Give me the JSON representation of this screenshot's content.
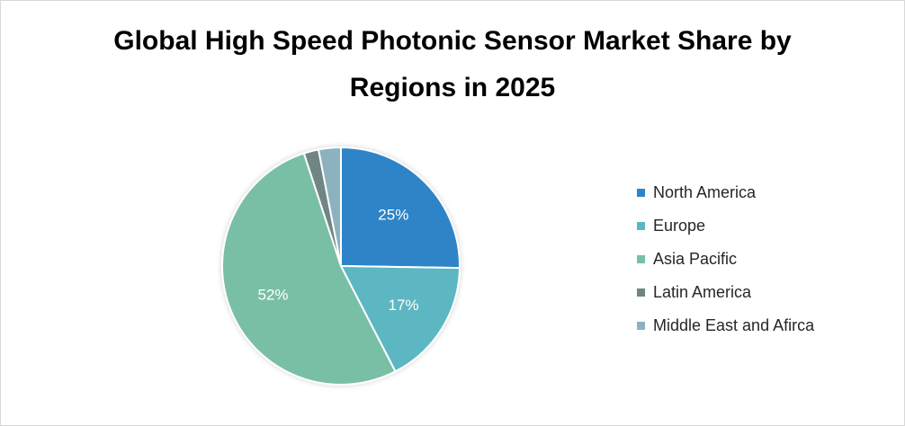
{
  "chart_data": {
    "type": "pie",
    "title": "Global High Speed Photonic Sensor Market Share by Regions in 2025",
    "categories": [
      "North America",
      "Europe",
      "Asia Pacific",
      "Latin America",
      "Middle East and Afirca"
    ],
    "values": [
      25,
      17,
      52,
      2,
      3
    ],
    "data_labels": [
      "25%",
      "17%",
      "52%",
      "",
      ""
    ],
    "colors": [
      "#2e84c6",
      "#5bb7c2",
      "#79bfa6",
      "#6f8584",
      "#8cb2bf"
    ],
    "legend_position": "right",
    "start_angle_deg": 0,
    "direction": "clockwise"
  }
}
